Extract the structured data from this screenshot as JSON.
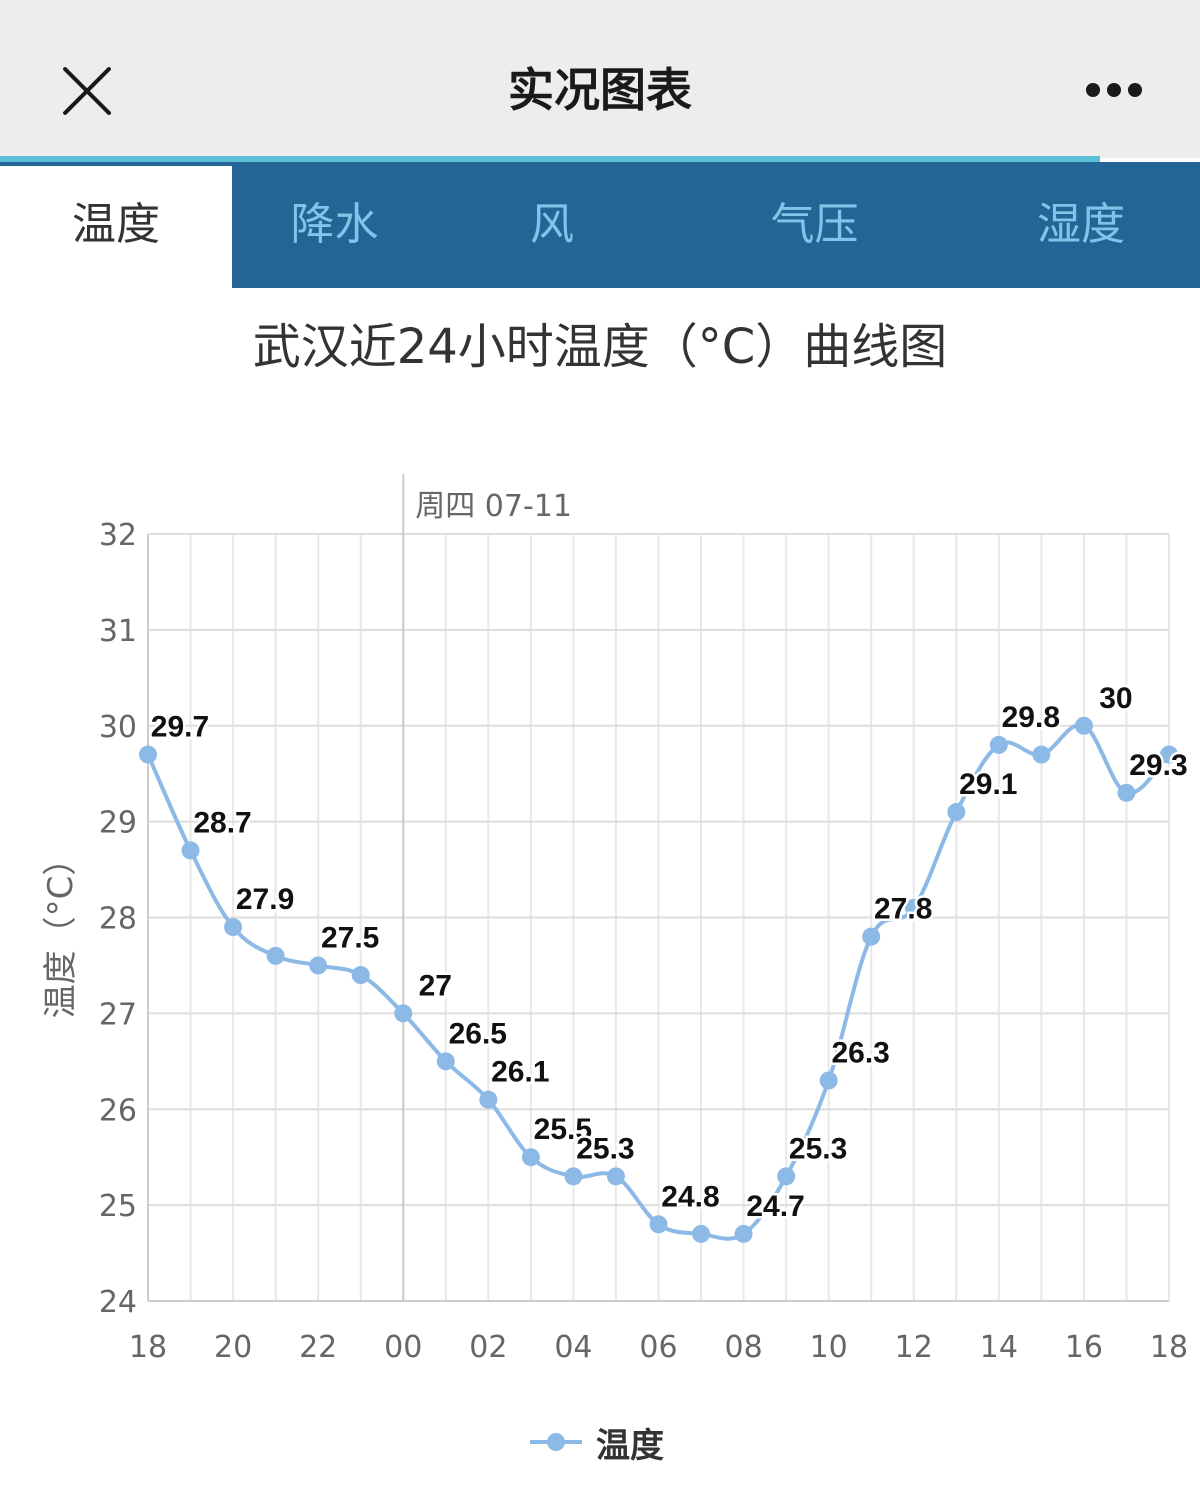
{
  "header": {
    "title": "实况图表"
  },
  "tabs": [
    {
      "label": "温度",
      "active": true
    },
    {
      "label": "降水",
      "active": false
    },
    {
      "label": "风",
      "active": false
    },
    {
      "label": "气压",
      "active": false
    },
    {
      "label": "湿度",
      "active": false
    }
  ],
  "colors": {
    "tab_bar": "#236595",
    "tab_text": "#7ec6e9",
    "progress": "#5cbfd8",
    "series": "#8db9e6"
  },
  "chart_data": {
    "type": "line",
    "title": "武汉近24小时温度（°C）曲线图",
    "ylabel": "温度（°C）",
    "xlabel": "",
    "ylim": [
      24,
      32
    ],
    "yticks": [
      24,
      25,
      26,
      27,
      28,
      29,
      30,
      31,
      32
    ],
    "grid": true,
    "date_marker": {
      "label": "周四 07-11",
      "x": "00"
    },
    "x": [
      "18",
      "19",
      "20",
      "21",
      "22",
      "23",
      "00",
      "01",
      "02",
      "03",
      "04",
      "05",
      "06",
      "07",
      "08",
      "09",
      "10",
      "11",
      "12",
      "13",
      "14",
      "15",
      "16",
      "17",
      "18"
    ],
    "xticks": [
      "18",
      "20",
      "22",
      "00",
      "02",
      "04",
      "06",
      "08",
      "10",
      "12",
      "14",
      "16",
      "18"
    ],
    "series": [
      {
        "name": "温度",
        "values": [
          29.7,
          28.7,
          27.9,
          27.6,
          27.5,
          27.4,
          27,
          26.5,
          26.1,
          25.5,
          25.3,
          25.3,
          24.8,
          24.7,
          24.7,
          25.3,
          26.3,
          27.8,
          28.1,
          29.1,
          29.8,
          29.7,
          30,
          29.3,
          29.7
        ],
        "labels": [
          "29.7",
          "28.7",
          "27.9",
          "",
          "27.5",
          "",
          "27",
          "26.5",
          "26.1",
          "25.5",
          "25.3",
          "",
          "24.8",
          "",
          "24.7",
          "25.3",
          "26.3",
          "27.8",
          "",
          "29.1",
          "29.8",
          "",
          "30",
          "29.3",
          ""
        ]
      }
    ],
    "legend": {
      "position": "bottom",
      "entries": [
        "温度"
      ]
    }
  }
}
